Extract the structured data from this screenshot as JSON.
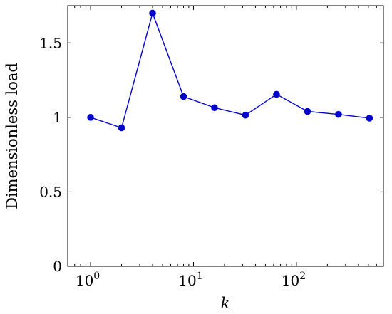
{
  "chart_data": {
    "type": "line",
    "xscale": "log",
    "xlabel": "k",
    "ylabel": "Dimensionless load",
    "xlim": [
      0.6,
      700
    ],
    "ylim": [
      0,
      1.75
    ],
    "y_ticks": [
      {
        "value": 0,
        "label": "0"
      },
      {
        "value": 0.5,
        "label": "0.5"
      },
      {
        "value": 1,
        "label": "1"
      },
      {
        "value": 1.5,
        "label": "1.5"
      }
    ],
    "x_ticks": [
      {
        "value": 1,
        "base": "10",
        "exp": "0"
      },
      {
        "value": 10,
        "base": "10",
        "exp": "1"
      },
      {
        "value": 100,
        "base": "10",
        "exp": "2"
      }
    ],
    "grid": false,
    "series": [
      {
        "color": "#0000cc",
        "x": [
          1,
          2,
          4,
          8,
          16,
          32,
          64,
          128,
          256,
          512
        ],
        "y": [
          1.0,
          0.93,
          1.7,
          1.14,
          1.065,
          1.015,
          1.155,
          1.04,
          1.02,
          0.995
        ]
      }
    ]
  }
}
